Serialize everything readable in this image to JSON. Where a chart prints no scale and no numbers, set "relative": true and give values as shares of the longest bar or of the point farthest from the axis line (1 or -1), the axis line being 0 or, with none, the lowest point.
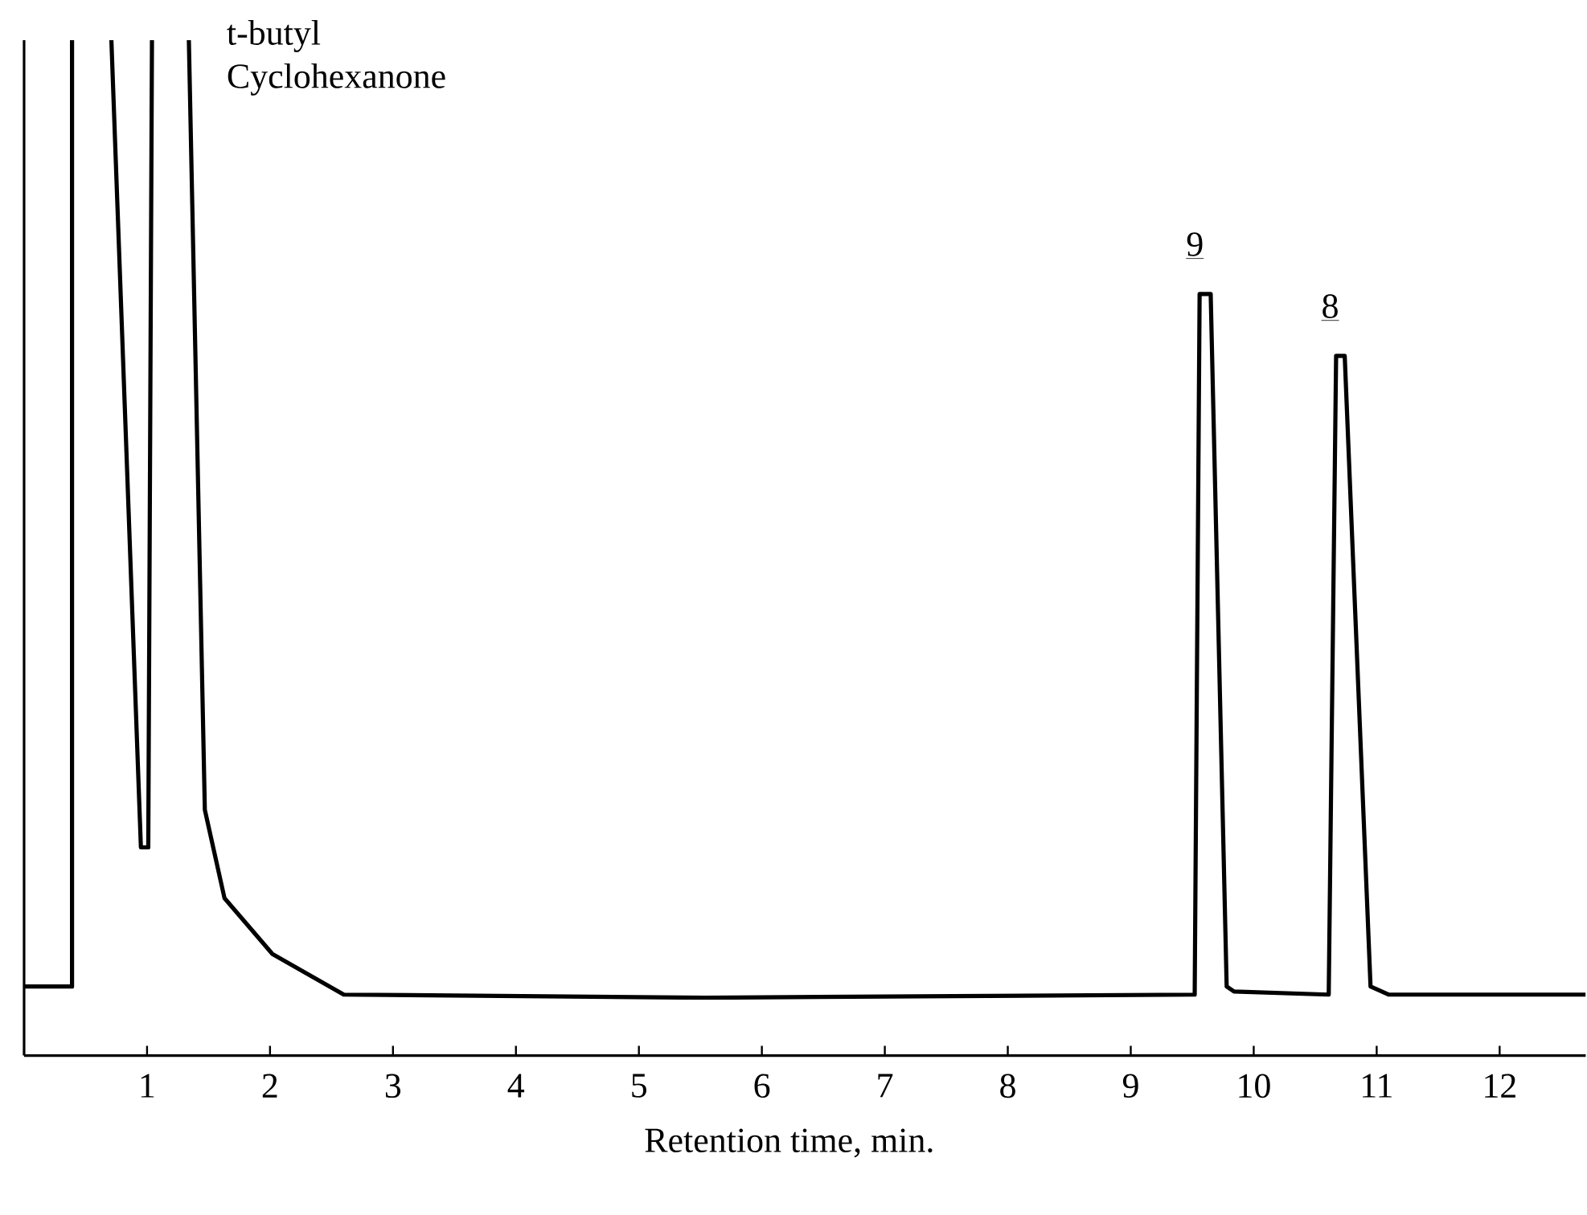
{
  "chart_data": {
    "type": "line",
    "relative": true,
    "xlabel": "Retention time, min.",
    "color": "#000000",
    "x": [
      0.0,
      0.39,
      0.39,
      0.55,
      0.71,
      0.95,
      1.01,
      1.04,
      1.2,
      1.34,
      1.47,
      1.63,
      2.02,
      2.6,
      5.54,
      9.52,
      9.56,
      9.65,
      9.78,
      9.84,
      10.61,
      10.67,
      10.74,
      10.95,
      11.1,
      12.7
    ],
    "values": [
      0.068,
      0.068,
      1.0,
      null,
      1.0,
      0.205,
      0.205,
      1.0,
      null,
      1.0,
      0.242,
      0.155,
      0.1,
      0.06,
      0.057,
      0.06,
      0.75,
      0.75,
      0.068,
      0.063,
      0.06,
      0.689,
      0.689,
      0.068,
      0.06,
      0.06
    ],
    "xlim": [
      0,
      12.7
    ],
    "xticks": [
      1,
      2,
      3,
      4,
      5,
      6,
      7,
      8,
      9,
      10,
      11,
      12
    ],
    "annotations": [
      {
        "text": "t-butyl Cyclohexanone",
        "x": 1.34,
        "y": 1.0
      },
      {
        "text": "9",
        "x": 9.6,
        "y": 0.75
      },
      {
        "text": "8",
        "x": 10.7,
        "y": 0.689
      }
    ]
  }
}
